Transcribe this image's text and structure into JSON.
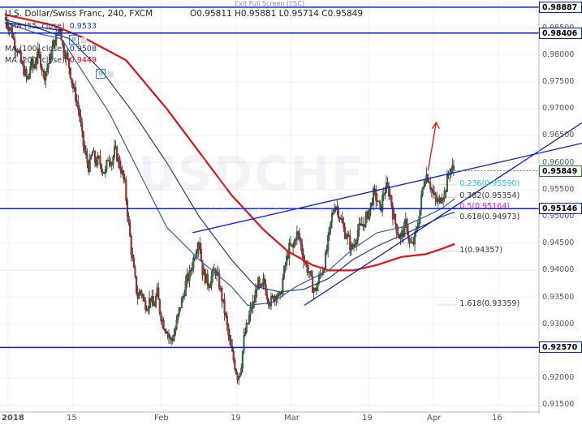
{
  "toolbar": {
    "exit_label": "Exit Full Screen (ESC)"
  },
  "header": {
    "symbol": "U.S. Dollar/Swiss Franc, 240, FXCM",
    "ohlc": "O0.95811  H0.95881  L0.95714  C0.95849"
  },
  "indicators": [
    {
      "label": "EMA (55, close)",
      "value": "0.9533",
      "color": "#1a3aa8"
    },
    {
      "label": "MA (100, close)",
      "value": "0.9508",
      "color": "#1a3aa8"
    },
    {
      "label": "MA (200, close)",
      "value": "0.9449",
      "color": "#e00000"
    }
  ],
  "watermark": {
    "main": "USDCHF",
    "sub": "U.S. Dollar/Swiss Franc"
  },
  "colors": {
    "up": "#2e7d32",
    "down": "#c62828",
    "trend": "#0a1ed4",
    "ema55": "#2b5fa3",
    "ma100": "#1f3b8a",
    "ma200": "#e01414",
    "fib_text": "#d81bd8",
    "fib_cyan": "#19c3e6",
    "arrow": "#e01414"
  },
  "chart_data": {
    "type": "candlestick",
    "title": "U.S. Dollar/Swiss Franc, 240, FXCM",
    "x_ticks": [
      "2018",
      "15",
      "Feb",
      "19",
      "Mar",
      "19",
      "Apr",
      "16"
    ],
    "y_ticks": [
      "0.98500",
      "0.98000",
      "0.97500",
      "0.97000",
      "0.96500",
      "0.96000",
      "0.95500",
      "0.95000",
      "0.94500",
      "0.94000",
      "0.93500",
      "0.93000",
      "0.92500",
      "0.92000",
      "0.91500"
    ],
    "ylim": [
      0.9137,
      0.9902
    ],
    "horizontal_levels": [
      {
        "value": 0.98887,
        "label": "0.98887"
      },
      {
        "value": 0.98406,
        "label": "0.98406"
      },
      {
        "value": 0.95146,
        "label": "0.95146"
      },
      {
        "value": 0.9257,
        "label": "0.92570"
      }
    ],
    "last_price": {
      "value": 0.95849,
      "label": "0.95849"
    },
    "fibonacci": [
      {
        "label": "0.236(0.95590)",
        "value": 0.9559
      },
      {
        "label": "0.382(0.95354)",
        "value": 0.95354
      },
      {
        "label": "0.5(0.95164)",
        "value": 0.95164
      },
      {
        "label": "0.618(0.94973)",
        "value": 0.94973
      },
      {
        "label": "1(0.94357)",
        "value": 0.94357
      },
      {
        "label": "1.618(0.93359)",
        "value": 0.93359
      }
    ],
    "close_path": [
      [
        0,
        0.987
      ],
      [
        4,
        0.9855
      ],
      [
        8,
        0.9845
      ],
      [
        12,
        0.982
      ],
      [
        16,
        0.981
      ],
      [
        20,
        0.9785
      ],
      [
        24,
        0.977
      ],
      [
        28,
        0.975
      ],
      [
        32,
        0.9785
      ],
      [
        36,
        0.9775
      ],
      [
        40,
        0.9805
      ],
      [
        44,
        0.979
      ],
      [
        48,
        0.976
      ],
      [
        52,
        0.9775
      ],
      [
        56,
        0.9795
      ],
      [
        60,
        0.982
      ],
      [
        64,
        0.9835
      ],
      [
        68,
        0.9855
      ],
      [
        72,
        0.981
      ],
      [
        76,
        0.98
      ],
      [
        80,
        0.9775
      ],
      [
        84,
        0.974
      ],
      [
        88,
        0.972
      ],
      [
        92,
        0.969
      ],
      [
        96,
        0.964
      ],
      [
        100,
        0.961
      ],
      [
        104,
        0.959
      ],
      [
        108,
        0.962
      ],
      [
        112,
        0.96
      ],
      [
        116,
        0.9605
      ],
      [
        120,
        0.959
      ],
      [
        124,
        0.958
      ],
      [
        128,
        0.9615
      ],
      [
        132,
        0.96
      ],
      [
        136,
        0.9625
      ],
      [
        140,
        0.9605
      ],
      [
        144,
        0.9585
      ],
      [
        148,
        0.956
      ],
      [
        152,
        0.95
      ],
      [
        156,
        0.944
      ],
      [
        160,
        0.939
      ],
      [
        164,
        0.935
      ],
      [
        168,
        0.9365
      ],
      [
        172,
        0.934
      ],
      [
        176,
        0.9335
      ],
      [
        180,
        0.935
      ],
      [
        184,
        0.933
      ],
      [
        188,
        0.936
      ],
      [
        192,
        0.932
      ],
      [
        196,
        0.93
      ],
      [
        200,
        0.929
      ],
      [
        204,
        0.927
      ],
      [
        208,
        0.9275
      ],
      [
        212,
        0.93
      ],
      [
        216,
        0.933
      ],
      [
        220,
        0.935
      ],
      [
        224,
        0.938
      ],
      [
        228,
        0.939
      ],
      [
        232,
        0.9415
      ],
      [
        236,
        0.944
      ],
      [
        240,
        0.946
      ],
      [
        244,
        0.94
      ],
      [
        248,
        0.9385
      ],
      [
        252,
        0.9375
      ],
      [
        256,
        0.939
      ],
      [
        260,
        0.94
      ],
      [
        264,
        0.938
      ],
      [
        268,
        0.935
      ],
      [
        272,
        0.932
      ],
      [
        276,
        0.928
      ],
      [
        280,
        0.925
      ],
      [
        284,
        0.9225
      ],
      [
        288,
        0.92
      ],
      [
        292,
        0.9225
      ],
      [
        296,
        0.928
      ],
      [
        300,
        0.93
      ],
      [
        304,
        0.933
      ],
      [
        308,
        0.934
      ],
      [
        312,
        0.938
      ],
      [
        316,
        0.936
      ],
      [
        320,
        0.938
      ],
      [
        324,
        0.9355
      ],
      [
        328,
        0.934
      ],
      [
        332,
        0.935
      ],
      [
        336,
        0.936
      ],
      [
        340,
        0.9345
      ],
      [
        344,
        0.939
      ],
      [
        348,
        0.942
      ],
      [
        352,
        0.9445
      ],
      [
        356,
        0.944
      ],
      [
        360,
        0.947
      ],
      [
        364,
        0.946
      ],
      [
        368,
        0.943
      ],
      [
        372,
        0.941
      ],
      [
        376,
        0.9395
      ],
      [
        380,
        0.937
      ],
      [
        384,
        0.936
      ],
      [
        388,
        0.9385
      ],
      [
        392,
        0.94
      ],
      [
        396,
        0.942
      ],
      [
        400,
        0.946
      ],
      [
        404,
        0.95
      ],
      [
        408,
        0.9525
      ],
      [
        412,
        0.951
      ],
      [
        416,
        0.949
      ],
      [
        420,
        0.947
      ],
      [
        424,
        0.946
      ],
      [
        428,
        0.944
      ],
      [
        432,
        0.945
      ],
      [
        436,
        0.9475
      ],
      [
        440,
        0.948
      ],
      [
        444,
        0.949
      ],
      [
        448,
        0.95
      ],
      [
        452,
        0.952
      ],
      [
        456,
        0.9545
      ],
      [
        460,
        0.953
      ],
      [
        464,
        0.951
      ],
      [
        468,
        0.9545
      ],
      [
        472,
        0.9555
      ],
      [
        476,
        0.954
      ],
      [
        480,
        0.95
      ],
      [
        484,
        0.948
      ],
      [
        488,
        0.946
      ],
      [
        492,
        0.947
      ],
      [
        496,
        0.949
      ],
      [
        500,
        0.945
      ],
      [
        504,
        0.9445
      ],
      [
        508,
        0.947
      ],
      [
        512,
        0.95
      ],
      [
        516,
        0.955
      ],
      [
        520,
        0.958
      ],
      [
        524,
        0.957
      ],
      [
        528,
        0.9545
      ],
      [
        532,
        0.953
      ],
      [
        536,
        0.9525
      ],
      [
        540,
        0.954
      ],
      [
        544,
        0.9545
      ],
      [
        548,
        0.958
      ],
      [
        552,
        0.959
      ],
      [
        556,
        0.9585
      ]
    ],
    "ema55_path": [
      [
        0,
        0.986
      ],
      [
        40,
        0.984
      ],
      [
        70,
        0.983
      ],
      [
        100,
        0.976
      ],
      [
        130,
        0.969
      ],
      [
        160,
        0.96
      ],
      [
        200,
        0.948
      ],
      [
        240,
        0.942
      ],
      [
        280,
        0.937
      ],
      [
        300,
        0.9335
      ],
      [
        330,
        0.934
      ],
      [
        360,
        0.937
      ],
      [
        380,
        0.9385
      ],
      [
        400,
        0.94
      ],
      [
        430,
        0.944
      ],
      [
        460,
        0.947
      ],
      [
        490,
        0.948
      ],
      [
        520,
        0.95
      ],
      [
        540,
        0.9515
      ],
      [
        556,
        0.9533
      ]
    ],
    "ma100_path": [
      [
        0,
        0.9865
      ],
      [
        40,
        0.985
      ],
      [
        80,
        0.983
      ],
      [
        120,
        0.977
      ],
      [
        160,
        0.969
      ],
      [
        200,
        0.96
      ],
      [
        240,
        0.95
      ],
      [
        280,
        0.942
      ],
      [
        310,
        0.937
      ],
      [
        340,
        0.936
      ],
      [
        370,
        0.9365
      ],
      [
        400,
        0.9385
      ],
      [
        430,
        0.942
      ],
      [
        460,
        0.9445
      ],
      [
        490,
        0.9465
      ],
      [
        520,
        0.9485
      ],
      [
        540,
        0.95
      ],
      [
        556,
        0.9508
      ]
    ],
    "ma200_path": [
      [
        0,
        0.9875
      ],
      [
        60,
        0.9855
      ],
      [
        100,
        0.983
      ],
      [
        150,
        0.979
      ],
      [
        200,
        0.97
      ],
      [
        240,
        0.962
      ],
      [
        280,
        0.954
      ],
      [
        320,
        0.9475
      ],
      [
        350,
        0.9435
      ],
      [
        380,
        0.941
      ],
      [
        400,
        0.94
      ],
      [
        430,
        0.94
      ],
      [
        460,
        0.941
      ],
      [
        490,
        0.9425
      ],
      [
        520,
        0.943
      ],
      [
        540,
        0.944
      ],
      [
        556,
        0.9449
      ]
    ],
    "trendlines": [
      {
        "from": [
          232,
          0.947
        ],
        "to": [
          664,
          0.9636
        ]
      },
      {
        "from": [
          370,
          0.9335
        ],
        "to": [
          664,
          0.9674
        ]
      },
      {
        "from": [
          0,
          0.986
        ],
        "to": [
          72,
          0.9845
        ]
      }
    ],
    "arrow": {
      "from": [
        523,
        0.9585
      ],
      "to": [
        533,
        0.9675
      ]
    }
  }
}
